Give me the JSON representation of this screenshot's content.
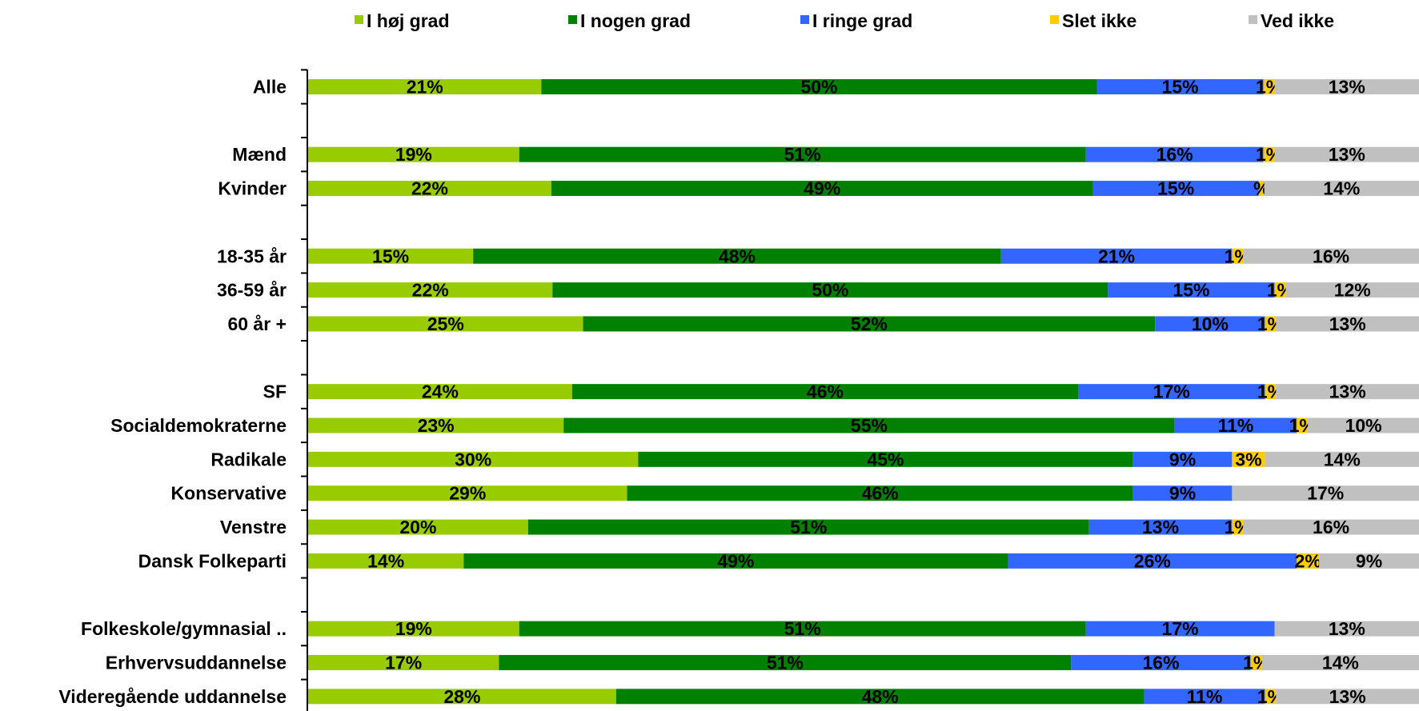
{
  "chart_data": {
    "type": "bar",
    "orientation": "horizontal",
    "stacked": true,
    "normalized": true,
    "legend_position": "top",
    "grid": false,
    "series": [
      {
        "name": "I høj grad",
        "color": "#99cc00"
      },
      {
        "name": "I nogen grad",
        "color": "#008000"
      },
      {
        "name": "I ringe grad",
        "color": "#3366ff"
      },
      {
        "name": "Slet ikke",
        "color": "#ffcc00"
      },
      {
        "name": "Ved ikke",
        "color": "#c0c0c0"
      }
    ],
    "categories": [
      {
        "label": "Alle",
        "values": [
          21,
          50,
          15,
          1,
          13
        ],
        "labels": [
          "21%",
          "50%",
          "15%",
          "1%",
          "13%"
        ]
      },
      {
        "label": "",
        "values": null
      },
      {
        "label": "Mænd",
        "values": [
          19,
          51,
          16,
          1,
          13
        ],
        "labels": [
          "19%",
          "51%",
          "16%",
          "1%",
          "13%"
        ]
      },
      {
        "label": "Kvinder",
        "values": [
          22,
          49,
          15,
          0.5,
          14
        ],
        "labels": [
          "22%",
          "49%",
          "15%",
          "%",
          "14%"
        ]
      },
      {
        "label": "",
        "values": null
      },
      {
        "label": "18-35 år",
        "values": [
          15,
          48,
          21,
          1,
          16
        ],
        "labels": [
          "15%",
          "48%",
          "21%",
          "1%",
          "16%"
        ]
      },
      {
        "label": "36-59 år",
        "values": [
          22,
          50,
          15,
          1,
          12
        ],
        "labels": [
          "22%",
          "50%",
          "15%",
          "1%",
          "12%"
        ]
      },
      {
        "label": "60 år +",
        "values": [
          25,
          52,
          10,
          1,
          13
        ],
        "labels": [
          "25%",
          "52%",
          "10%",
          "1%",
          "13%"
        ]
      },
      {
        "label": "",
        "values": null
      },
      {
        "label": "SF",
        "values": [
          24,
          46,
          17,
          1,
          13
        ],
        "labels": [
          "24%",
          "46%",
          "17%",
          "1%",
          "13%"
        ]
      },
      {
        "label": "Socialdemokraterne",
        "values": [
          23,
          55,
          11,
          1,
          10
        ],
        "labels": [
          "23%",
          "55%",
          "11%",
          "1%",
          "10%"
        ]
      },
      {
        "label": "Radikale",
        "values": [
          30,
          45,
          9,
          3,
          14
        ],
        "labels": [
          "30%",
          "45%",
          "9%",
          "3%",
          "14%"
        ]
      },
      {
        "label": "Konservative",
        "values": [
          29,
          46,
          9,
          0,
          17
        ],
        "labels": [
          "29%",
          "46%",
          "9%",
          "",
          "17%"
        ]
      },
      {
        "label": "Venstre",
        "values": [
          20,
          51,
          13,
          1,
          16
        ],
        "labels": [
          "20%",
          "51%",
          "13%",
          "1%",
          "16%"
        ]
      },
      {
        "label": "Dansk Folkeparti",
        "values": [
          14,
          49,
          26,
          2,
          9
        ],
        "labels": [
          "14%",
          "49%",
          "26%",
          "2%",
          "9%"
        ]
      },
      {
        "label": "",
        "values": null
      },
      {
        "label": "Folkeskole/gymnasial ..",
        "values": [
          19,
          51,
          17,
          0,
          13
        ],
        "labels": [
          "19%",
          "51%",
          "17%",
          "",
          "13%"
        ]
      },
      {
        "label": "Erhvervsuddannelse",
        "values": [
          17,
          51,
          16,
          1,
          14
        ],
        "labels": [
          "17%",
          "51%",
          "16%",
          "1%",
          "14%"
        ]
      },
      {
        "label": "Videregående uddannelse",
        "values": [
          28,
          48,
          11,
          1,
          13
        ],
        "labels": [
          "28%",
          "48%",
          "11%",
          "1%",
          "13%"
        ]
      }
    ]
  }
}
